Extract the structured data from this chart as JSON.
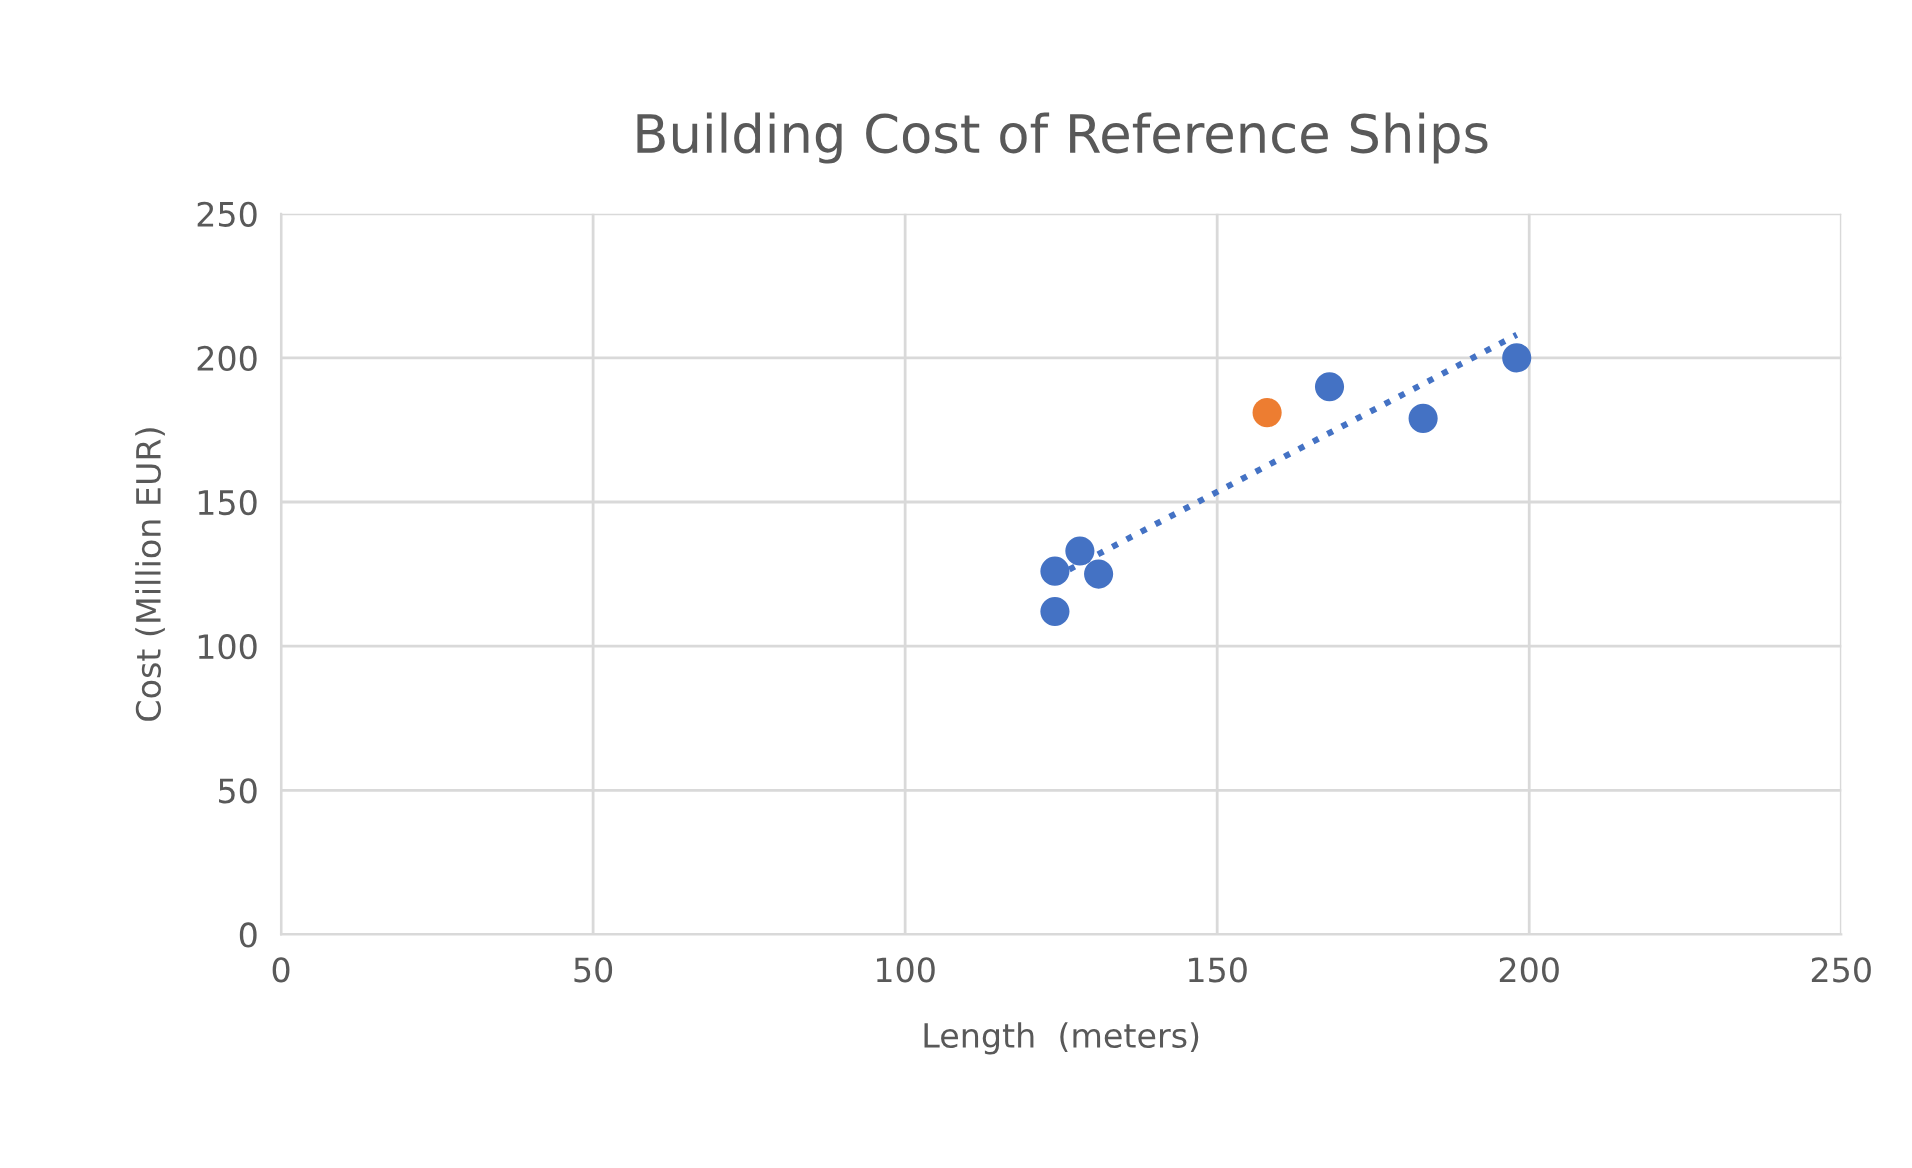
{
  "chart_data": {
    "type": "scatter",
    "title": "Building Cost of Reference Ships",
    "xlabel": "Length  (meters)",
    "ylabel": "Cost (Million EUR)",
    "series": [
      {
        "color": "#4472c4",
        "x": [
          124,
          128,
          131,
          124,
          168,
          183,
          198
        ],
        "values": [
          126,
          133,
          125,
          112,
          190,
          179,
          200
        ],
        "marker": "circle"
      },
      {
        "color": "#ed7d31",
        "x": [
          158
        ],
        "values": [
          181
        ],
        "marker": "circle"
      },
      {
        "type": "line",
        "color": "#4472c4",
        "x": [
          124,
          198
        ],
        "values": [
          124,
          208
        ],
        "line_style": "dotted",
        "marker": "none"
      }
    ],
    "xlim": [
      0,
      250
    ],
    "xticks": [
      0,
      50,
      100,
      150,
      200,
      250
    ],
    "ylim": [
      0,
      250
    ],
    "yticks": [
      0,
      50,
      100,
      150,
      200,
      250
    ],
    "grid": true
  }
}
